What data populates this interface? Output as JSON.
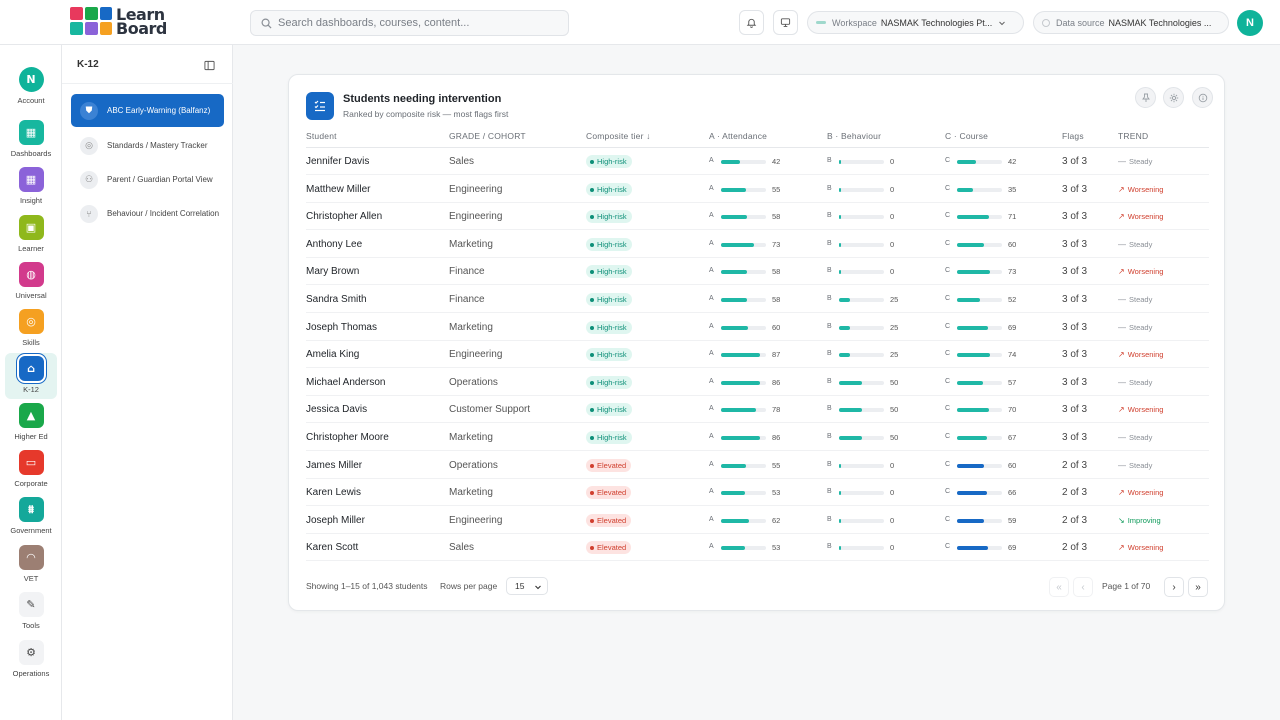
{
  "brand": {
    "line1": "Learn",
    "line2": "Board"
  },
  "search": {
    "placeholder": "Search dashboards, courses, content..."
  },
  "header": {
    "workspace_label": "Workspace",
    "workspace_value": "NASMAK Technologies Pt...",
    "datasource_label": "Data source",
    "datasource_value": "NASMAK Technologies ...",
    "avatar": "N"
  },
  "rail": [
    {
      "label": "Account",
      "icon": "avatar-icon",
      "color": "#0fb39a"
    },
    {
      "label": "Dashboards",
      "icon": "grid-icon",
      "color": "#17b79f"
    },
    {
      "label": "Insight",
      "icon": "grid-icon",
      "color": "#8b63d9"
    },
    {
      "label": "Learner",
      "icon": "id-card-icon",
      "color": "#8fb81c"
    },
    {
      "label": "Universal",
      "icon": "globe-icon",
      "color": "#d23a8c"
    },
    {
      "label": "Skills",
      "icon": "target-icon",
      "color": "#f5a021"
    },
    {
      "label": "K-12",
      "icon": "school-icon",
      "color": "#1769c5"
    },
    {
      "label": "Higher Ed",
      "icon": "graduation-cap-icon",
      "color": "#1aa84a"
    },
    {
      "label": "Corporate",
      "icon": "briefcase-icon",
      "color": "#e6392b"
    },
    {
      "label": "Government",
      "icon": "landmark-icon",
      "color": "#14a89a"
    },
    {
      "label": "VET",
      "icon": "hardhat-icon",
      "color": "#9c7f73"
    },
    {
      "label": "Tools",
      "icon": "wrench-icon",
      "color": "#f2f3f5"
    },
    {
      "label": "Operations",
      "icon": "gear-icon",
      "color": "#f2f3f5"
    }
  ],
  "sidebar": {
    "title": "K-12",
    "items": [
      {
        "label": "ABC Early-Warning (Balfanz)",
        "icon": "shield-icon"
      },
      {
        "label": "Standards / Mastery Tracker",
        "icon": "target-icon"
      },
      {
        "label": "Parent / Guardian Portal View",
        "icon": "users-icon"
      },
      {
        "label": "Behaviour / Incident Correlation",
        "icon": "branch-icon"
      }
    ]
  },
  "card": {
    "title": "Students needing intervention",
    "subtitle": "Ranked by composite risk — most flags first",
    "columns": {
      "student": "Student",
      "grade": "GRADE / COHORT",
      "tier": "Composite tier ↓",
      "attendance": "A · Attendance",
      "behaviour": "B · Behaviour",
      "course": "C · Course",
      "flags": "Flags",
      "trend": "TREND"
    }
  },
  "students": [
    {
      "name": "Jennifer Davis",
      "cohort": "Sales",
      "tier": "High-risk",
      "a": 42,
      "b": 0,
      "c": 42,
      "flags": "3 of 3",
      "trend": "Steady"
    },
    {
      "name": "Matthew Miller",
      "cohort": "Engineering",
      "tier": "High-risk",
      "a": 55,
      "b": 0,
      "c": 35,
      "flags": "3 of 3",
      "trend": "Worsening"
    },
    {
      "name": "Christopher Allen",
      "cohort": "Engineering",
      "tier": "High-risk",
      "a": 58,
      "b": 0,
      "c": 71,
      "flags": "3 of 3",
      "trend": "Worsening"
    },
    {
      "name": "Anthony Lee",
      "cohort": "Marketing",
      "tier": "High-risk",
      "a": 73,
      "b": 0,
      "c": 60,
      "flags": "3 of 3",
      "trend": "Steady"
    },
    {
      "name": "Mary Brown",
      "cohort": "Finance",
      "tier": "High-risk",
      "a": 58,
      "b": 0,
      "c": 73,
      "flags": "3 of 3",
      "trend": "Worsening"
    },
    {
      "name": "Sandra Smith",
      "cohort": "Finance",
      "tier": "High-risk",
      "a": 58,
      "b": 25,
      "c": 52,
      "flags": "3 of 3",
      "trend": "Steady"
    },
    {
      "name": "Joseph Thomas",
      "cohort": "Marketing",
      "tier": "High-risk",
      "a": 60,
      "b": 25,
      "c": 69,
      "flags": "3 of 3",
      "trend": "Steady"
    },
    {
      "name": "Amelia King",
      "cohort": "Engineering",
      "tier": "High-risk",
      "a": 87,
      "b": 25,
      "c": 74,
      "flags": "3 of 3",
      "trend": "Worsening"
    },
    {
      "name": "Michael Anderson",
      "cohort": "Operations",
      "tier": "High-risk",
      "a": 86,
      "b": 50,
      "c": 57,
      "flags": "3 of 3",
      "trend": "Steady"
    },
    {
      "name": "Jessica Davis",
      "cohort": "Customer Support",
      "tier": "High-risk",
      "a": 78,
      "b": 50,
      "c": 70,
      "flags": "3 of 3",
      "trend": "Worsening"
    },
    {
      "name": "Christopher Moore",
      "cohort": "Marketing",
      "tier": "High-risk",
      "a": 86,
      "b": 50,
      "c": 67,
      "flags": "3 of 3",
      "trend": "Steady"
    },
    {
      "name": "James Miller",
      "cohort": "Operations",
      "tier": "Elevated",
      "a": 55,
      "b": 0,
      "c": 60,
      "flags": "2 of 3",
      "trend": "Steady"
    },
    {
      "name": "Karen Lewis",
      "cohort": "Marketing",
      "tier": "Elevated",
      "a": 53,
      "b": 0,
      "c": 66,
      "flags": "2 of 3",
      "trend": "Worsening"
    },
    {
      "name": "Joseph Miller",
      "cohort": "Engineering",
      "tier": "Elevated",
      "a": 62,
      "b": 0,
      "c": 59,
      "flags": "2 of 3",
      "trend": "Improving"
    },
    {
      "name": "Karen Scott",
      "cohort": "Sales",
      "tier": "Elevated",
      "a": 53,
      "b": 0,
      "c": 69,
      "flags": "2 of 3",
      "trend": "Worsening"
    }
  ],
  "colors": {
    "attendance": "#1fb8a6",
    "behaviour": "#1fb8a6",
    "course_high": "#1fb8a6",
    "course_elevated": "#1769c5"
  },
  "footer": {
    "showing": "Showing 1–15 of 1,043 students",
    "rows_per_page_label": "Rows per page",
    "rows_per_page_value": "15",
    "page": "Page 1 of 70"
  }
}
